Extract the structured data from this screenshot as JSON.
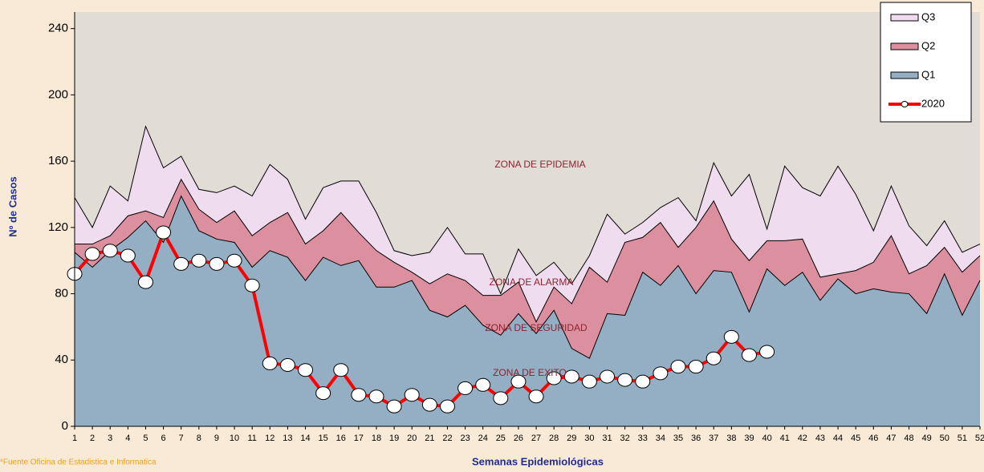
{
  "chart_data": {
    "type": "epidemic-channel",
    "ylabel": "Nº de Casos",
    "xlabel": "Semanas Epidemiológicas",
    "source": "*Fuente Oficina de Estadistica e Informatica",
    "annotations": [
      "ZONA DE EPIDEMIA",
      "ZONA DE ALARMA",
      "ZONA DE SEGURIDAD",
      "ZONA DE EXITO"
    ],
    "x": [
      1,
      2,
      3,
      4,
      5,
      6,
      7,
      8,
      9,
      10,
      11,
      12,
      13,
      14,
      15,
      16,
      17,
      18,
      19,
      20,
      21,
      22,
      23,
      24,
      25,
      26,
      27,
      28,
      29,
      30,
      31,
      32,
      33,
      34,
      35,
      36,
      37,
      38,
      39,
      40,
      41,
      42,
      43,
      44,
      45,
      46,
      47,
      48,
      49,
      50,
      51,
      52
    ],
    "xlim": [
      1,
      52
    ],
    "ylim": [
      0,
      250
    ],
    "yticks": [
      0,
      40,
      80,
      120,
      160,
      200,
      240
    ],
    "legend": "upper right",
    "series": [
      {
        "name": "Q3",
        "kind": "area",
        "color": "#efdcef",
        "values": [
          138,
          120,
          145,
          136,
          181,
          156,
          163,
          143,
          141,
          145,
          139,
          158,
          149,
          125,
          144,
          148,
          148,
          129,
          106,
          103,
          105,
          120,
          104,
          104,
          80,
          107,
          91,
          99,
          86,
          103,
          128,
          116,
          123,
          132,
          138,
          124,
          159,
          139,
          152,
          119,
          157,
          144,
          139,
          157,
          140,
          118,
          145,
          121,
          109,
          124,
          105,
          110
        ]
      },
      {
        "name": "Q2",
        "kind": "area",
        "color": "#dc8f9e",
        "values": [
          110,
          110,
          115,
          127,
          130,
          126,
          149,
          131,
          123,
          130,
          115,
          123,
          129,
          110,
          118,
          129,
          117,
          106,
          99,
          93,
          86,
          92,
          88,
          79,
          79,
          87,
          63,
          84,
          74,
          96,
          87,
          111,
          114,
          123,
          108,
          120,
          136,
          113,
          100,
          112,
          112,
          113,
          90,
          92,
          94,
          99,
          115,
          92,
          97,
          108,
          93,
          103
        ]
      },
      {
        "name": "Q1",
        "kind": "area",
        "color": "#94aec4",
        "values": [
          105,
          96,
          106,
          114,
          124,
          111,
          139,
          118,
          113,
          111,
          96,
          106,
          102,
          88,
          102,
          97,
          100,
          84,
          84,
          88,
          70,
          66,
          73,
          61,
          55,
          68,
          56,
          70,
          47,
          41,
          68,
          67,
          93,
          85,
          97,
          80,
          94,
          93,
          69,
          95,
          85,
          93,
          76,
          89,
          80,
          83,
          81,
          80,
          68,
          92,
          67,
          88
        ]
      },
      {
        "name": "2020",
        "kind": "line",
        "color": "#ff0000",
        "values": [
          92,
          104,
          106,
          103,
          87,
          117,
          98,
          100,
          98,
          100,
          85,
          38,
          37,
          34,
          20,
          34,
          19,
          18,
          12,
          19,
          13,
          12,
          23,
          25,
          17,
          27,
          18,
          29,
          30,
          27,
          30,
          28,
          27,
          32,
          36,
          36,
          41,
          54,
          43,
          45,
          null,
          null,
          null,
          null,
          null,
          null,
          null,
          null,
          null,
          null,
          null,
          null
        ]
      }
    ]
  }
}
